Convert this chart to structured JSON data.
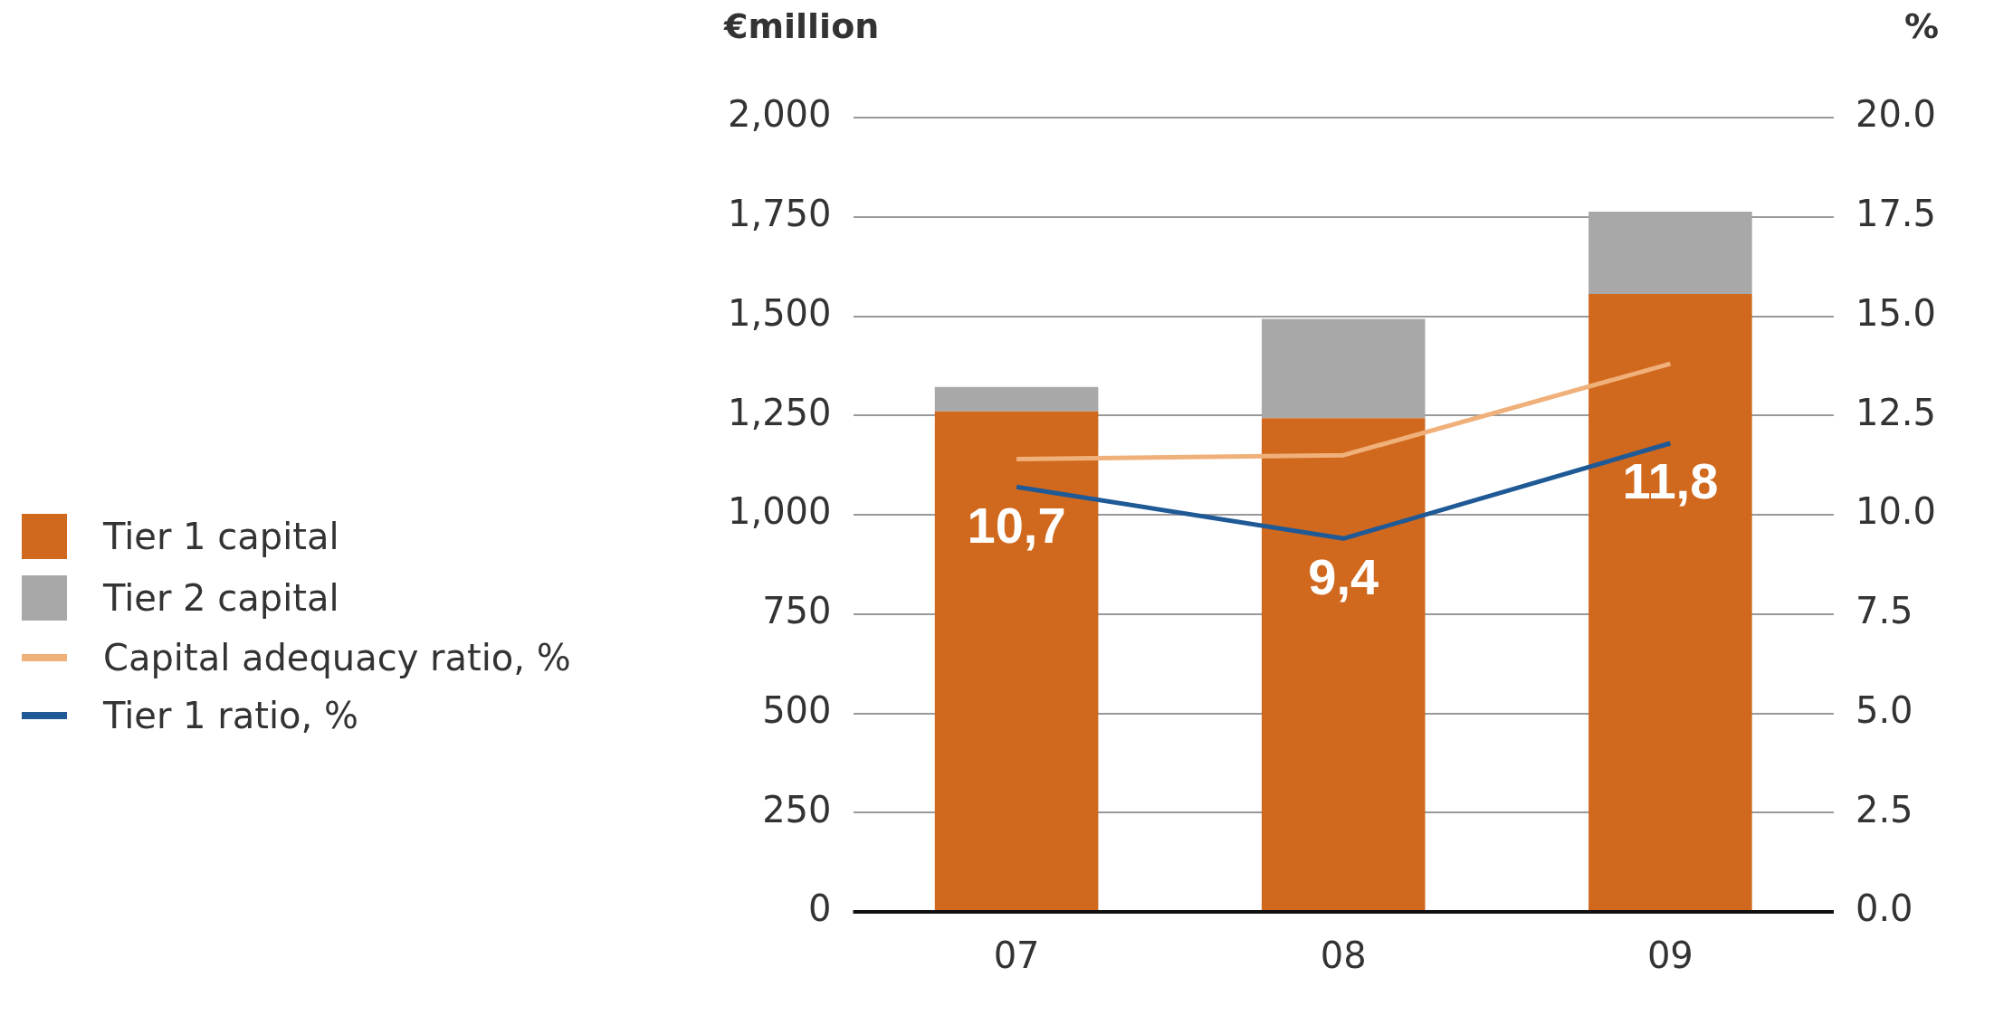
{
  "chart_data": {
    "type": "bar",
    "ylabel": "€million",
    "y2label": "%",
    "categories": [
      "07",
      "08",
      "09"
    ],
    "stacked": true,
    "series": [
      {
        "name": "Tier 1 capital",
        "color": "#d0691e",
        "values": [
          1260,
          1243,
          1556
        ]
      },
      {
        "name": "Tier 2 capital",
        "color": "#a8a8a8",
        "values": [
          62,
          250,
          207
        ]
      },
      {
        "name": "Capital adequacy ratio, %",
        "type": "line",
        "axis": "y2",
        "color": "#f0b07a",
        "values": [
          11.4,
          11.5,
          13.8
        ]
      },
      {
        "name": "Tier 1 ratio, %",
        "type": "line",
        "axis": "y2",
        "color": "#1f5a96",
        "values": [
          10.7,
          9.4,
          11.8
        ],
        "value_labels": [
          "10,7",
          "9,4",
          "11,8"
        ]
      }
    ],
    "ylim": [
      0,
      2000
    ],
    "yticks": [
      0,
      {
        "value": 250,
        "label": "250"
      },
      {
        "value": 500,
        "label": "500"
      },
      {
        "value": 750,
        "label": "750"
      },
      {
        "value": 1000,
        "label": "1,000"
      },
      {
        "value": 1250,
        "label": "1,250"
      },
      {
        "value": 1500,
        "label": "1,500"
      },
      {
        "value": 1750,
        "label": "1,750"
      },
      {
        "value": 2000,
        "label": "2,000"
      }
    ],
    "y2lim": [
      0,
      20
    ],
    "y2ticks": [
      {
        "value": 0,
        "label": "0.0"
      },
      {
        "value": 2.5,
        "label": "2.5"
      },
      {
        "value": 5,
        "label": "5.0"
      },
      {
        "value": 7.5,
        "label": "7.5"
      },
      {
        "value": 10,
        "label": "10.0"
      },
      {
        "value": 12.5,
        "label": "12.5"
      },
      {
        "value": 15,
        "label": "15.0"
      },
      {
        "value": 17.5,
        "label": "17.5"
      },
      {
        "value": 20,
        "label": "20.0"
      }
    ],
    "grid": "y",
    "legend": "left",
    "marker": "none",
    "line_style": "solid"
  }
}
